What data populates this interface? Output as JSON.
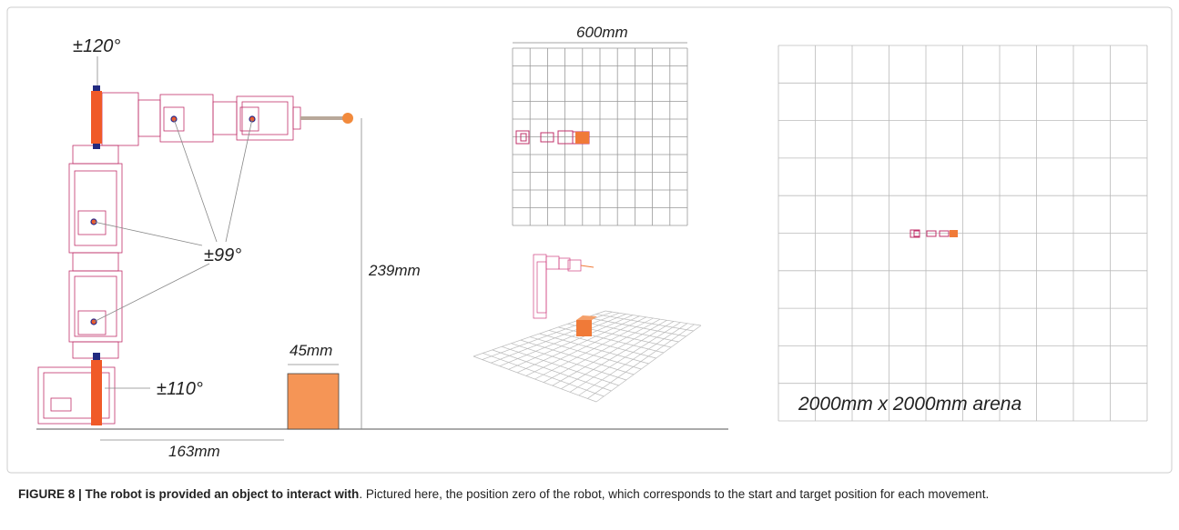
{
  "labels": {
    "wrist": "±120°",
    "elbow": "±99°",
    "base": "±110°",
    "height": "239mm",
    "object_width": "45mm",
    "distance": "163mm",
    "top_view_width": "600mm",
    "arena": "2000mm x 2000mm arena"
  },
  "caption": {
    "label": "FIGURE 8 | The robot is provided an object to interact with",
    "text": ". Pictured here, the position zero of the robot, which corresponds to the start and target position for each movement."
  }
}
